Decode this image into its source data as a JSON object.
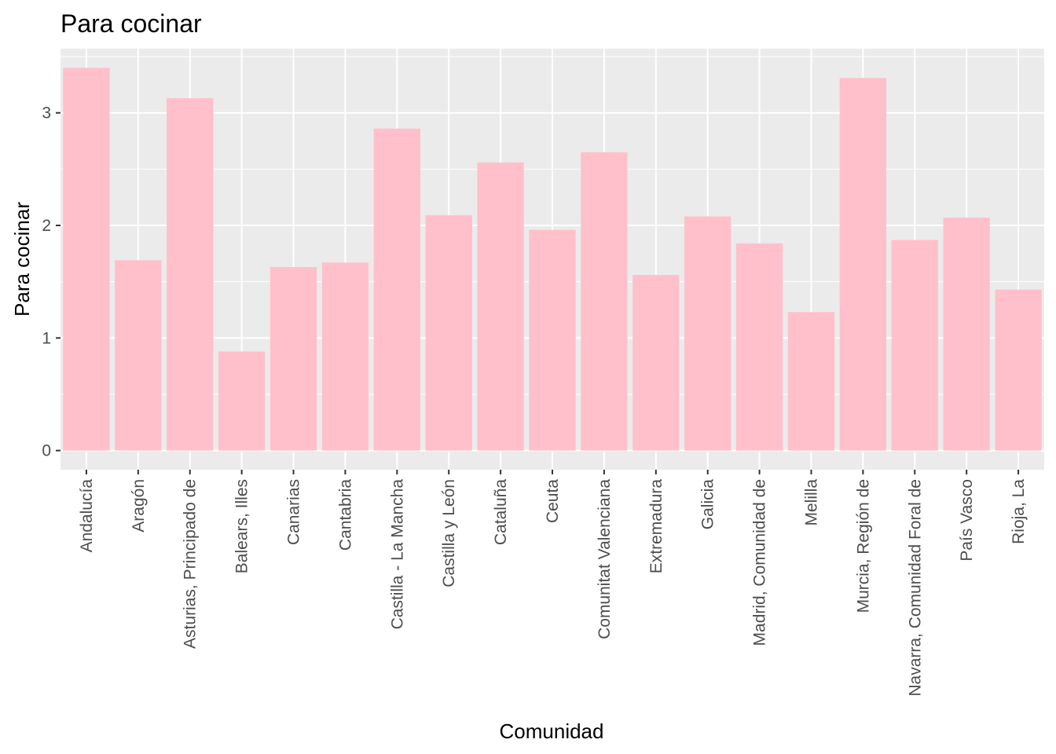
{
  "chart_data": {
    "type": "bar",
    "title": "Para cocinar",
    "xlabel": "Comunidad",
    "ylabel": "Para cocinar",
    "categories": [
      "Andalucía",
      "Aragón",
      "Asturias, Principado de",
      "Balears, Illes",
      "Canarias",
      "Cantabria",
      "Castilla - La Mancha",
      "Castilla y León",
      "Cataluña",
      "Ceuta",
      "Comunitat Valenciana",
      "Extremadura",
      "Galicia",
      "Madrid, Comunidad de",
      "Melilla",
      "Murcia, Región de",
      "Navarra, Comunidad Foral de",
      "País Vasco",
      "Rioja, La"
    ],
    "values": [
      3.4,
      1.69,
      3.13,
      0.88,
      1.63,
      1.67,
      2.86,
      2.09,
      2.56,
      1.96,
      2.65,
      1.56,
      2.08,
      1.84,
      1.23,
      3.31,
      1.87,
      2.07,
      1.43
    ],
    "yticks": [
      "0",
      "1",
      "2",
      "3"
    ],
    "ylim": [
      -0.17,
      3.57
    ],
    "grid": true,
    "colors": {
      "bar": "#ffc0cb",
      "panel": "#ebebeb",
      "grid": "#ffffff",
      "tick_text": "#4d4d4d",
      "tick_mark": "#333333"
    }
  }
}
